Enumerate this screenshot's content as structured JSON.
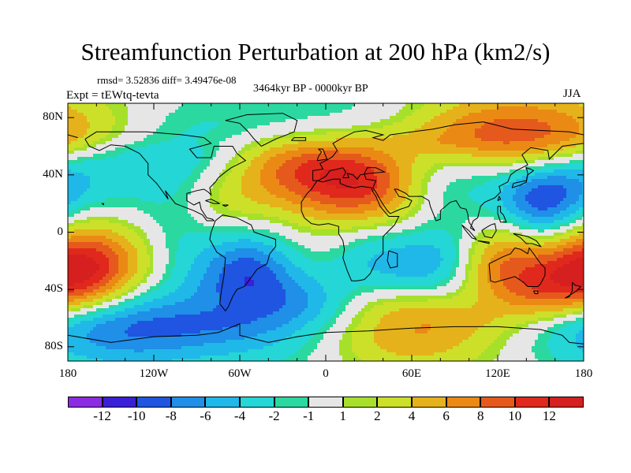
{
  "chart_data": {
    "type": "heatmap",
    "title": "Streamfunction Perturbation at 200 hPa (km2/s)",
    "stats": "rmsd= 3.52836 diff= 3.49476e-08",
    "period": "3464kyr BP - 0000kyr BP",
    "experiment": "Expt = tEWtq-tevta",
    "season": "JJA",
    "x_axis": {
      "range": [
        -180,
        180
      ],
      "ticks": [
        -180,
        -120,
        -60,
        0,
        60,
        120,
        180
      ],
      "tick_labels": [
        "180",
        "120W",
        "60W",
        "0",
        "60E",
        "120E",
        "180"
      ]
    },
    "y_axis": {
      "range": [
        -90,
        90
      ],
      "ticks": [
        80,
        40,
        0,
        -40,
        -80
      ],
      "tick_labels": [
        "80N",
        "40N",
        "0",
        "40S",
        "80S"
      ]
    },
    "colorbar": {
      "levels": [
        -12,
        -10,
        -8,
        -6,
        -4,
        -2,
        -1,
        1,
        2,
        4,
        6,
        8,
        10,
        12
      ],
      "labels": [
        "-12",
        "-10",
        "-8",
        "-6",
        "-4",
        "-2",
        "-1",
        "1",
        "2",
        "4",
        "6",
        "8",
        "10",
        "12"
      ],
      "colors": [
        "#8b2be2",
        "#3b1fd8",
        "#1f55e0",
        "#1f8fe8",
        "#20b8e8",
        "#24d6d6",
        "#2bd9a0",
        "#e6e6e6",
        "#a6e02a",
        "#cde029",
        "#e6b21b",
        "#ea8a15",
        "#e6591d",
        "#e0281d",
        "#d61f1f"
      ]
    },
    "anomalies": [
      {
        "lon": -170,
        "lat": 62,
        "value": 3
      },
      {
        "lon": -160,
        "lat": 40,
        "value": -3
      },
      {
        "lon": -170,
        "lat": -28,
        "value": 9
      },
      {
        "lon": -140,
        "lat": -25,
        "value": 4
      },
      {
        "lon": -150,
        "lat": -60,
        "value": -5
      },
      {
        "lon": -122,
        "lat": -60,
        "value": -4
      },
      {
        "lon": -110,
        "lat": 38,
        "value": -2
      },
      {
        "lon": -80,
        "lat": 62,
        "value": -3
      },
      {
        "lon": -70,
        "lat": 25,
        "value": 3
      },
      {
        "lon": -55,
        "lat": -30,
        "value": -8
      },
      {
        "lon": -30,
        "lat": 40,
        "value": 4
      },
      {
        "lon": 5,
        "lat": 38,
        "value": 6
      },
      {
        "lon": 30,
        "lat": 35,
        "value": 6
      },
      {
        "lon": 15,
        "lat": 70,
        "value": -3
      },
      {
        "lon": -20,
        "lat": -65,
        "value": -4
      },
      {
        "lon": 0,
        "lat": 0,
        "value": 0
      },
      {
        "lon": 35,
        "lat": -20,
        "value": -4
      },
      {
        "lon": 75,
        "lat": -22,
        "value": -5
      },
      {
        "lon": 50,
        "lat": -65,
        "value": 7
      },
      {
        "lon": 90,
        "lat": 40,
        "value": -3
      },
      {
        "lon": 115,
        "lat": 68,
        "value": 5
      },
      {
        "lon": 140,
        "lat": 55,
        "value": 6
      },
      {
        "lon": 150,
        "lat": 28,
        "value": -11
      },
      {
        "lon": 125,
        "lat": -25,
        "value": 7
      },
      {
        "lon": 165,
        "lat": -30,
        "value": 5
      },
      {
        "lon": 170,
        "lat": -55,
        "value": -2
      },
      {
        "lon": 60,
        "lat": 12,
        "value": 2
      },
      {
        "lon": -100,
        "lat": -10,
        "value": -2
      }
    ]
  }
}
